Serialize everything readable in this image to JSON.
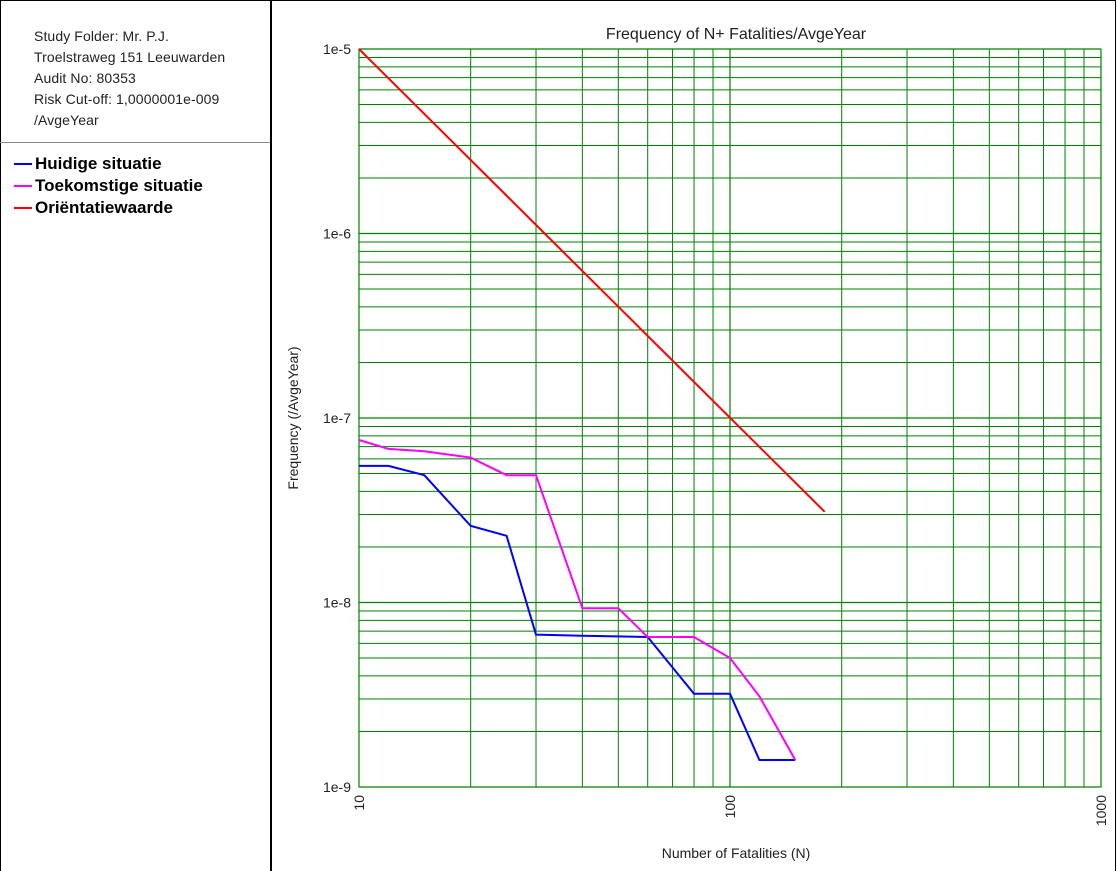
{
  "info": {
    "lines": [
      "Study Folder: Mr. P.J.",
      "Troelstraweg 151 Leeuwarden",
      "Audit No: 80353",
      "Risk Cut-off: 1,0000001e-009",
      "/AvgeYear"
    ]
  },
  "chart_data": {
    "type": "line",
    "title": "Frequency of N+ Fatalities/AvgeYear",
    "xlabel": "Number of Fatalities (N)",
    "ylabel": "Frequency (/AvgeYear)",
    "x_scale": "log",
    "y_scale": "log",
    "xlim": [
      10,
      1000
    ],
    "ylim": [
      1e-09,
      1e-05
    ],
    "x_tick_labels": [
      "10",
      "100",
      "1000"
    ],
    "y_tick_labels": [
      "1e-5",
      "1e-6",
      "1e-7",
      "1e-8",
      "1e-9"
    ],
    "grid": true,
    "grid_color": "#008000",
    "legend_position": "left panel",
    "series": [
      {
        "name": "Huidige situatie",
        "color": "#0000ff",
        "points": [
          [
            10,
            5.5e-08
          ],
          [
            12,
            5.5e-08
          ],
          [
            15,
            4.9e-08
          ],
          [
            20,
            2.6e-08
          ],
          [
            25,
            2.3e-08
          ],
          [
            30,
            6.7e-09
          ],
          [
            40,
            6.6e-09
          ],
          [
            60,
            6.5e-09
          ],
          [
            80,
            3.2e-09
          ],
          [
            100,
            3.2e-09
          ],
          [
            120,
            1.4e-09
          ],
          [
            150,
            1.4e-09
          ]
        ]
      },
      {
        "name": "Toekomstige situatie",
        "color": "#ff00ff",
        "points": [
          [
            10,
            7.6e-08
          ],
          [
            12,
            6.8e-08
          ],
          [
            15,
            6.6e-08
          ],
          [
            20,
            6.1e-08
          ],
          [
            25,
            4.9e-08
          ],
          [
            30,
            4.9e-08
          ],
          [
            40,
            9.3e-09
          ],
          [
            50,
            9.3e-09
          ],
          [
            60,
            6.5e-09
          ],
          [
            80,
            6.5e-09
          ],
          [
            100,
            5e-09
          ],
          [
            120,
            3.1e-09
          ],
          [
            150,
            1.4e-09
          ]
        ]
      },
      {
        "name": "Oriëntatiewaarde",
        "color": "#ff0000",
        "points": [
          [
            10,
            1e-05
          ],
          [
            180,
            3.1e-08
          ]
        ]
      }
    ]
  }
}
